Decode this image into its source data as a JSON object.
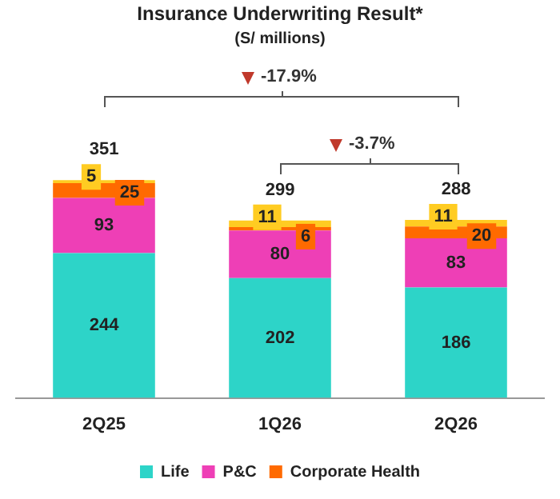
{
  "chart_data": {
    "type": "bar",
    "title": "Insurance Underwriting Result*",
    "subtitle": "(S/ millions)",
    "categories": [
      "2Q25",
      "1Q26",
      "2Q26"
    ],
    "series": [
      {
        "name": "Life",
        "color": "#2dd4c8",
        "values": [
          244,
          202,
          186
        ]
      },
      {
        "name": "P&C",
        "color": "#ee3fb6",
        "values": [
          93,
          80,
          83
        ]
      },
      {
        "name": "Corporate Health",
        "color": "#ff6a00",
        "values": [
          25,
          6,
          20
        ]
      },
      {
        "color": "#ffcc22",
        "values": [
          5,
          11,
          11
        ]
      }
    ],
    "stacked": true,
    "ylim": [
      0,
      400
    ],
    "data_labels": true,
    "annotations": [
      "-17.9%",
      "-3.7%",
      "351",
      "299",
      "288"
    ],
    "legend": "bottom",
    "grid": false
  }
}
